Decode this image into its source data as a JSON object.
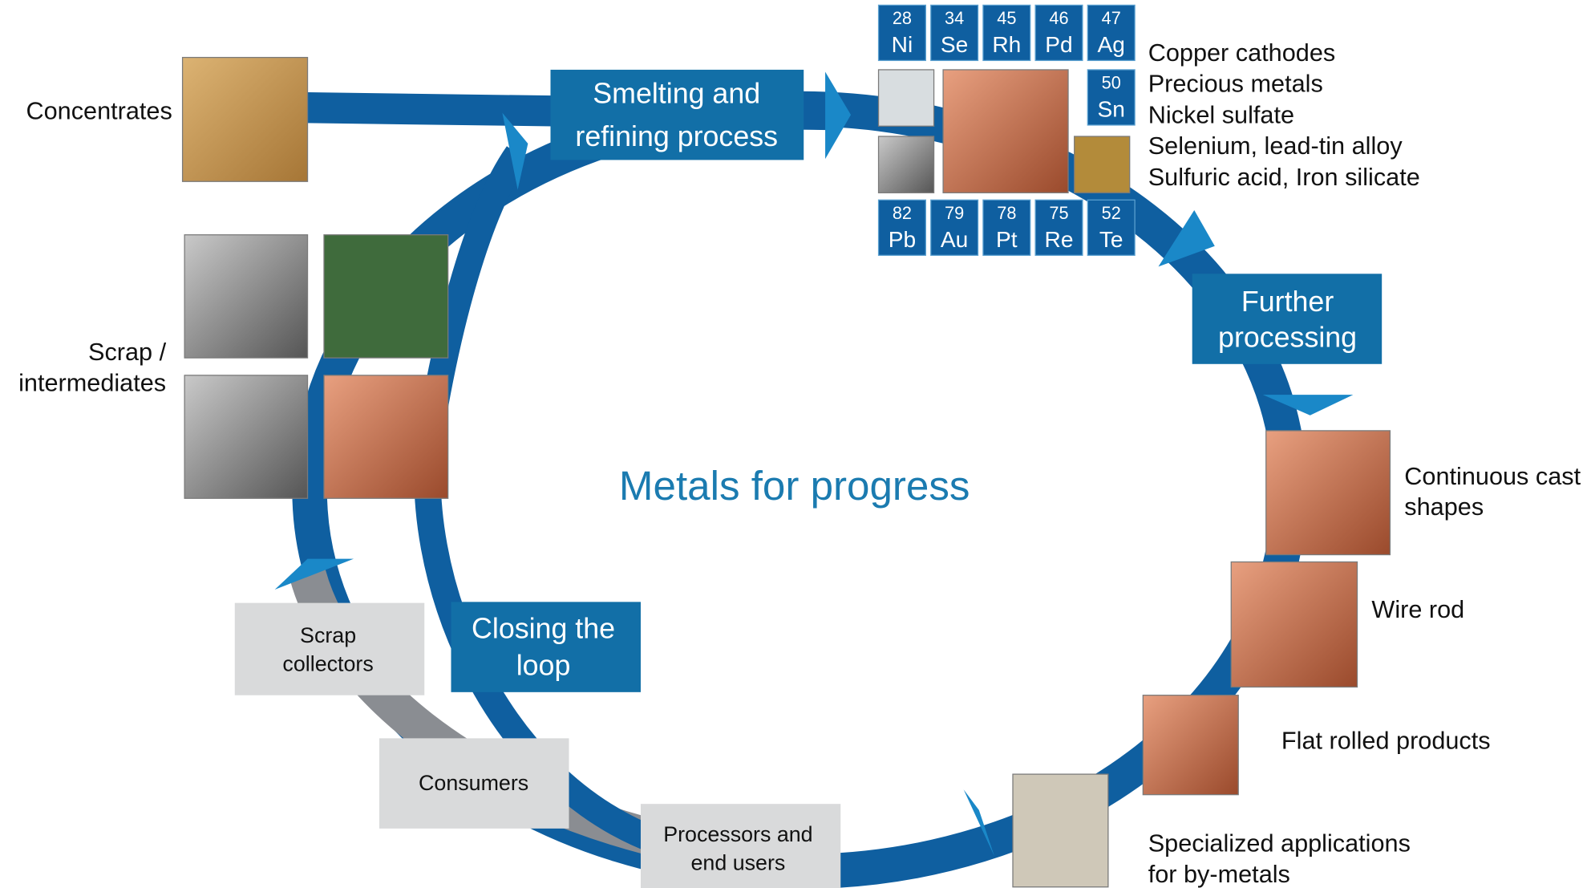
{
  "center_title": "Metals for progress",
  "inputs": [
    {
      "lines": [
        "Concentrates"
      ]
    },
    {
      "lines": [
        "Scrap /",
        "intermediates"
      ]
    }
  ],
  "process_steps": [
    {
      "lines": [
        "Smelting and",
        "refining process"
      ]
    },
    {
      "lines": [
        "Further",
        "processing"
      ]
    },
    {
      "lines": [
        "Closing the",
        "loop"
      ]
    }
  ],
  "elements": [
    {
      "number": 28,
      "symbol": "Ni"
    },
    {
      "number": 34,
      "symbol": "Se"
    },
    {
      "number": 45,
      "symbol": "Rh"
    },
    {
      "number": 46,
      "symbol": "Pd"
    },
    {
      "number": 47,
      "symbol": "Ag"
    },
    {
      "number": 50,
      "symbol": "Sn"
    },
    {
      "number": 82,
      "symbol": "Pb"
    },
    {
      "number": 79,
      "symbol": "Au"
    },
    {
      "number": 78,
      "symbol": "Pt"
    },
    {
      "number": 75,
      "symbol": "Re"
    },
    {
      "number": 52,
      "symbol": "Te"
    }
  ],
  "refined_products": [
    "Copper cathodes",
    "Precious metals",
    "Nickel sulfate",
    "Selenium, lead-tin alloy",
    "Sulfuric acid, Iron silicate"
  ],
  "products": [
    {
      "lines": [
        "Continuous cast",
        "shapes"
      ]
    },
    {
      "lines": [
        "Wire rod"
      ]
    },
    {
      "lines": [
        "Flat rolled products"
      ]
    },
    {
      "lines": [
        "Specialized applications",
        "for by-metals"
      ]
    }
  ],
  "chain": [
    {
      "lines": [
        "Processors and",
        "end users"
      ]
    },
    {
      "lines": [
        "Consumers"
      ]
    },
    {
      "lines": [
        "Scrap",
        "collectors"
      ]
    }
  ]
}
